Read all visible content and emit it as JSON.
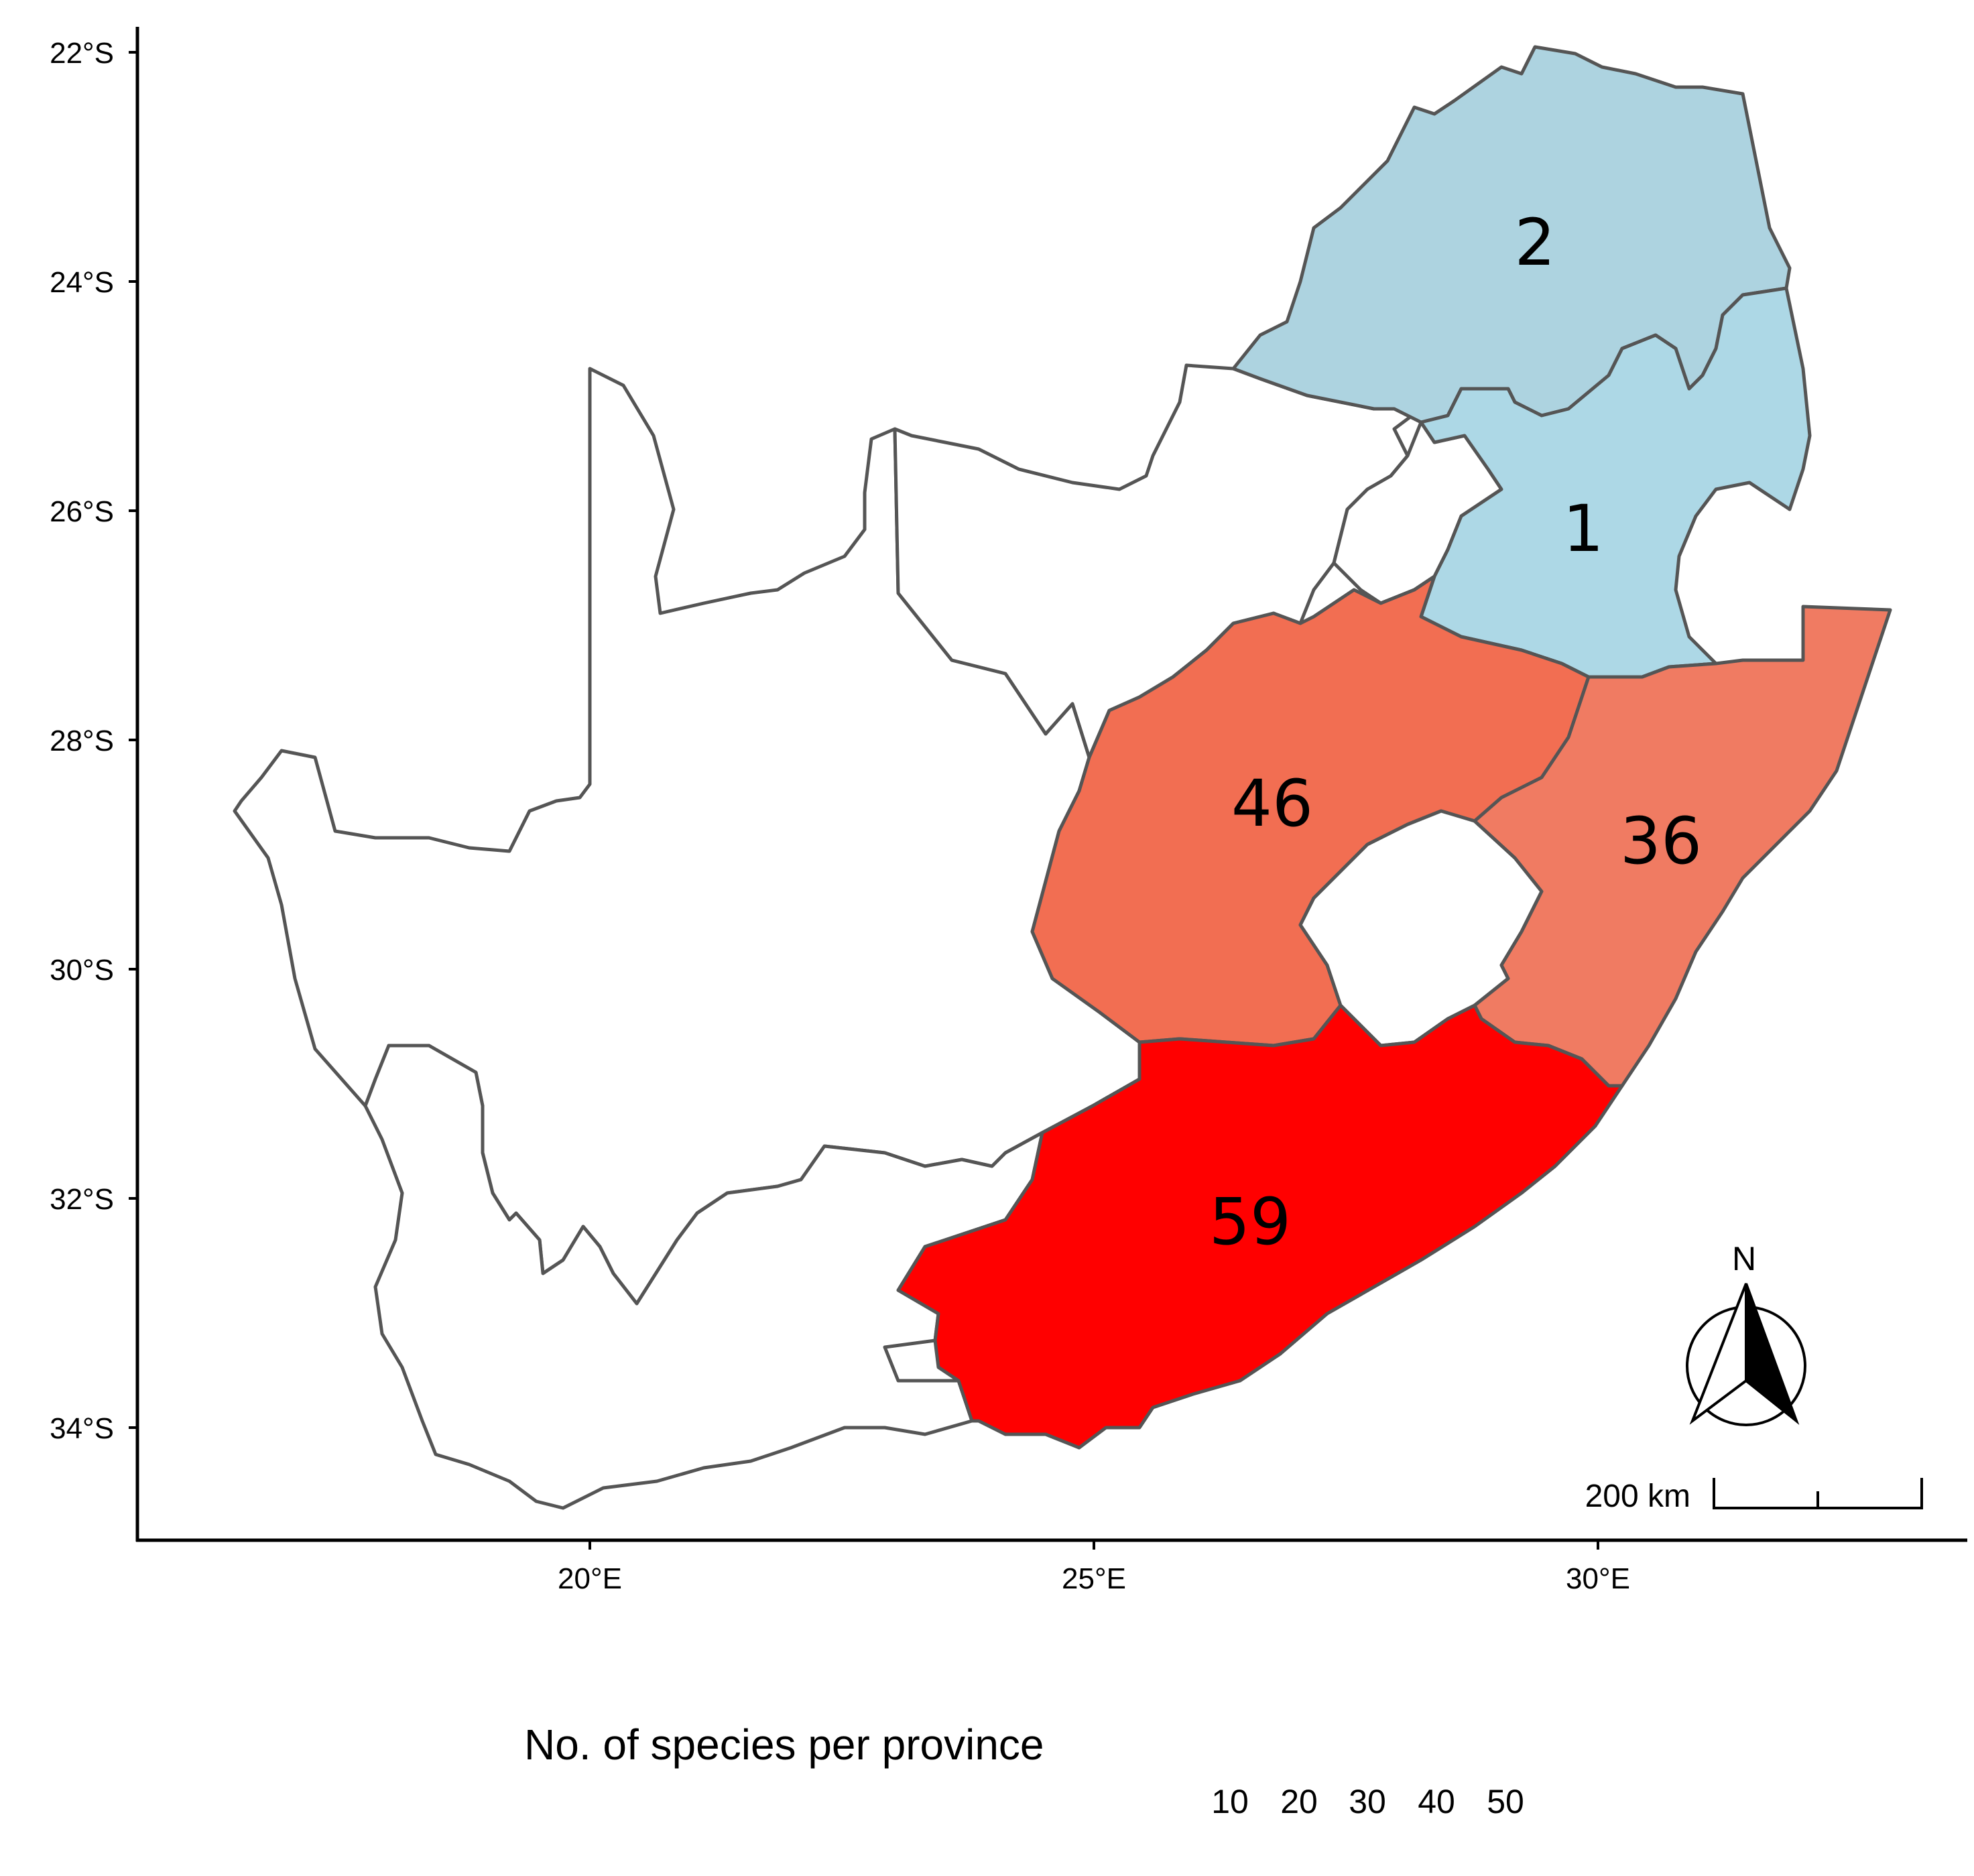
{
  "map": {
    "x_ticks": [
      "20°E",
      "25°E",
      "30°E"
    ],
    "y_ticks": [
      "22°S",
      "24°S",
      "26°S",
      "28°S",
      "30°S",
      "32°S",
      "34°S"
    ],
    "provinces": [
      {
        "id": "limpopo",
        "count": "2",
        "fill": "#ADD3E0"
      },
      {
        "id": "mpumalanga",
        "count": "1",
        "fill": "#ADD8E6"
      },
      {
        "id": "free-state",
        "count": "46",
        "fill": "#F26E52"
      },
      {
        "id": "kwazulu-natal",
        "count": "36",
        "fill": "#F07B62"
      },
      {
        "id": "eastern-cape",
        "count": "59",
        "fill": "#FF0000"
      },
      {
        "id": "northern-cape",
        "count": "",
        "fill": "#FFFFFF"
      },
      {
        "id": "western-cape",
        "count": "",
        "fill": "#FFFFFF"
      },
      {
        "id": "north-west",
        "count": "",
        "fill": "#FFFFFF"
      },
      {
        "id": "gauteng",
        "count": "",
        "fill": "#FFFFFF"
      }
    ],
    "scale_bar_label": "200 km",
    "north_label": "N",
    "border_color": "#555555"
  },
  "legend": {
    "title": "No. of species per province",
    "ticks": [
      "10",
      "20",
      "30",
      "40",
      "50"
    ]
  }
}
